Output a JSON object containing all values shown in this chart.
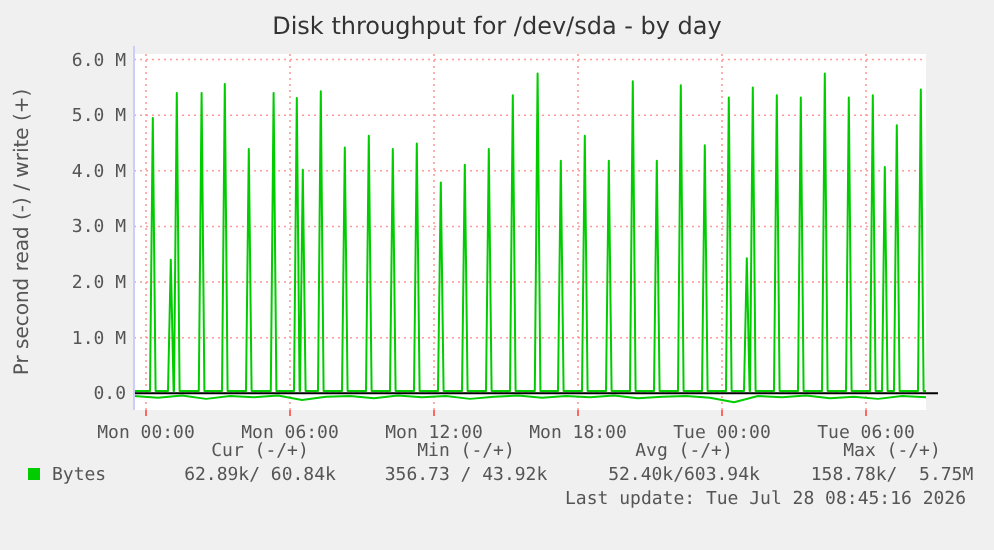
{
  "chart_data": {
    "type": "line",
    "title": "Disk throughput for /dev/sda - by day",
    "ylabel": "Pr second read (-) / write (+)",
    "xlim": [
      "2026-07-26T23:30",
      "2026-07-28T08:30"
    ],
    "xticks": [
      {
        "value": "2026-07-27T00:00",
        "label": "Mon 00:00"
      },
      {
        "value": "2026-07-27T06:00",
        "label": "Mon 06:00"
      },
      {
        "value": "2026-07-27T12:00",
        "label": "Mon 12:00"
      },
      {
        "value": "2026-07-27T18:00",
        "label": "Mon 18:00"
      },
      {
        "value": "2026-07-28T00:00",
        "label": "Tue 00:00"
      },
      {
        "value": "2026-07-28T06:00",
        "label": "Tue 06:00"
      }
    ],
    "ylim": [
      -0.3,
      6.1
    ],
    "yticks": [
      {
        "value": 0,
        "label": "0.0"
      },
      {
        "value": 1,
        "label": "1.0 M"
      },
      {
        "value": 2,
        "label": "2.0 M"
      },
      {
        "value": 3,
        "label": "3.0 M"
      },
      {
        "value": 4,
        "label": "4.0 M"
      },
      {
        "value": 5,
        "label": "5.0 M"
      },
      {
        "value": 6,
        "label": "6.0 M"
      }
    ],
    "grid": true,
    "legend": "bottom",
    "marker": "none",
    "line_style": "solid",
    "series": [
      {
        "color": "#00cc00",
        "x": [
          "2026-07-26T23:30",
          "2026-07-27T00:30",
          "2026-07-27T01:30",
          "2026-07-27T02:30",
          "2026-07-27T03:30",
          "2026-07-27T04:30",
          "2026-07-27T05:30",
          "2026-07-27T06:30",
          "2026-07-27T07:30",
          "2026-07-27T08:30",
          "2026-07-27T09:30",
          "2026-07-27T10:30",
          "2026-07-27T11:30",
          "2026-07-27T12:30",
          "2026-07-27T13:30",
          "2026-07-27T14:30",
          "2026-07-27T15:30",
          "2026-07-27T16:30",
          "2026-07-27T17:30",
          "2026-07-27T18:30",
          "2026-07-27T19:30",
          "2026-07-27T20:30",
          "2026-07-27T21:30",
          "2026-07-27T22:30",
          "2026-07-27T23:30",
          "2026-07-28T00:30",
          "2026-07-28T01:30",
          "2026-07-28T02:30",
          "2026-07-28T03:30",
          "2026-07-28T04:30",
          "2026-07-28T05:30",
          "2026-07-28T06:30",
          "2026-07-28T07:30",
          "2026-07-28T08:30"
        ],
        "values": [
          -0.05,
          -0.08,
          -0.04,
          -0.1,
          -0.05,
          -0.07,
          -0.04,
          -0.12,
          -0.06,
          -0.05,
          -0.09,
          -0.04,
          -0.07,
          -0.05,
          -0.1,
          -0.06,
          -0.04,
          -0.08,
          -0.05,
          -0.07,
          -0.04,
          -0.09,
          -0.06,
          -0.05,
          -0.08,
          -0.16,
          -0.05,
          -0.07,
          -0.04,
          -0.09,
          -0.06,
          -0.1,
          -0.05,
          -0.07
        ]
      },
      {
        "name": "Bytes",
        "color": "#00cc00",
        "x": [
          "2026-07-26T23:30",
          "2026-07-27T00:10",
          "2026-07-27T00:17",
          "2026-07-27T00:24",
          "2026-07-27T00:55",
          "2026-07-27T01:02",
          "2026-07-27T01:09",
          "2026-07-27T01:10",
          "2026-07-27T01:17",
          "2026-07-27T01:24",
          "2026-07-27T02:12",
          "2026-07-27T02:19",
          "2026-07-27T02:26",
          "2026-07-27T03:10",
          "2026-07-27T03:17",
          "2026-07-27T03:24",
          "2026-07-27T04:10",
          "2026-07-27T04:17",
          "2026-07-27T04:24",
          "2026-07-27T05:12",
          "2026-07-27T05:19",
          "2026-07-27T05:26",
          "2026-07-27T06:10",
          "2026-07-27T06:17",
          "2026-07-27T06:24",
          "2026-07-27T06:25",
          "2026-07-27T06:32",
          "2026-07-27T06:39",
          "2026-07-27T07:10",
          "2026-07-27T07:17",
          "2026-07-27T07:24",
          "2026-07-27T08:10",
          "2026-07-27T08:17",
          "2026-07-27T08:24",
          "2026-07-27T09:10",
          "2026-07-27T09:17",
          "2026-07-27T09:24",
          "2026-07-27T10:10",
          "2026-07-27T10:17",
          "2026-07-27T10:24",
          "2026-07-27T11:10",
          "2026-07-27T11:17",
          "2026-07-27T11:24",
          "2026-07-27T12:10",
          "2026-07-27T12:17",
          "2026-07-27T12:24",
          "2026-07-27T13:10",
          "2026-07-27T13:17",
          "2026-07-27T13:24",
          "2026-07-27T14:10",
          "2026-07-27T14:17",
          "2026-07-27T14:24",
          "2026-07-27T15:10",
          "2026-07-27T15:17",
          "2026-07-27T15:24",
          "2026-07-27T16:12",
          "2026-07-27T16:19",
          "2026-07-27T16:26",
          "2026-07-27T17:10",
          "2026-07-27T17:17",
          "2026-07-27T17:24",
          "2026-07-27T18:10",
          "2026-07-27T18:17",
          "2026-07-27T18:24",
          "2026-07-27T19:10",
          "2026-07-27T19:17",
          "2026-07-27T19:24",
          "2026-07-27T20:10",
          "2026-07-27T20:17",
          "2026-07-27T20:24",
          "2026-07-27T21:10",
          "2026-07-27T21:17",
          "2026-07-27T21:24",
          "2026-07-27T22:10",
          "2026-07-27T22:17",
          "2026-07-27T22:24",
          "2026-07-27T23:10",
          "2026-07-27T23:17",
          "2026-07-27T23:24",
          "2026-07-28T00:10",
          "2026-07-28T00:17",
          "2026-07-28T00:24",
          "2026-07-28T00:55",
          "2026-07-28T01:02",
          "2026-07-28T01:09",
          "2026-07-28T01:10",
          "2026-07-28T01:17",
          "2026-07-28T01:24",
          "2026-07-28T02:10",
          "2026-07-28T02:17",
          "2026-07-28T02:24",
          "2026-07-28T03:10",
          "2026-07-28T03:17",
          "2026-07-28T03:24",
          "2026-07-28T04:10",
          "2026-07-28T04:17",
          "2026-07-28T04:24",
          "2026-07-28T05:10",
          "2026-07-28T05:17",
          "2026-07-28T05:24",
          "2026-07-28T06:10",
          "2026-07-28T06:17",
          "2026-07-28T06:24",
          "2026-07-28T06:40",
          "2026-07-28T06:47",
          "2026-07-28T06:54",
          "2026-07-28T07:10",
          "2026-07-28T07:17",
          "2026-07-28T07:24",
          "2026-07-28T08:10",
          "2026-07-28T08:17",
          "2026-07-28T08:24",
          "2026-07-28T08:30"
        ],
        "values": [
          0.04,
          0.04,
          4.95,
          0.04,
          0.04,
          2.4,
          0.04,
          0.04,
          5.4,
          0.04,
          0.04,
          5.4,
          0.04,
          0.04,
          5.56,
          0.04,
          0.04,
          4.39,
          0.04,
          0.04,
          5.4,
          0.04,
          0.04,
          5.31,
          0.04,
          0.04,
          4.02,
          0.04,
          0.04,
          5.43,
          0.04,
          0.04,
          4.42,
          0.04,
          0.04,
          4.63,
          0.04,
          0.04,
          4.39,
          0.04,
          0.04,
          4.49,
          0.04,
          0.04,
          3.79,
          0.04,
          0.04,
          4.11,
          0.04,
          0.04,
          4.39,
          0.04,
          0.04,
          5.36,
          0.04,
          0.04,
          5.75,
          0.04,
          0.04,
          4.18,
          0.04,
          0.04,
          4.63,
          0.04,
          0.04,
          4.18,
          0.04,
          0.04,
          5.61,
          0.04,
          0.04,
          4.18,
          0.04,
          0.04,
          5.54,
          0.04,
          0.04,
          4.46,
          0.04,
          0.04,
          5.32,
          0.04,
          0.04,
          2.43,
          0.04,
          0.04,
          5.5,
          0.04,
          0.04,
          5.36,
          0.04,
          0.04,
          5.32,
          0.04,
          0.04,
          5.75,
          0.04,
          0.04,
          5.32,
          0.04,
          0.04,
          5.36,
          0.04,
          0.04,
          4.07,
          0.04,
          0.04,
          4.82,
          0.04,
          0.04,
          5.46,
          0.04,
          0.04
        ]
      }
    ],
    "annotations": [
      "Cur (-/+)",
      "Min (-/+)",
      "Avg (-/+)",
      "Max (-/+)",
      "62.89k/ 60.84k",
      "356.73 / 43.92k",
      "52.40k/603.94k",
      "158.78k/  5.75M",
      "Last update: Tue Jul 28 08:45:16 2026"
    ]
  }
}
